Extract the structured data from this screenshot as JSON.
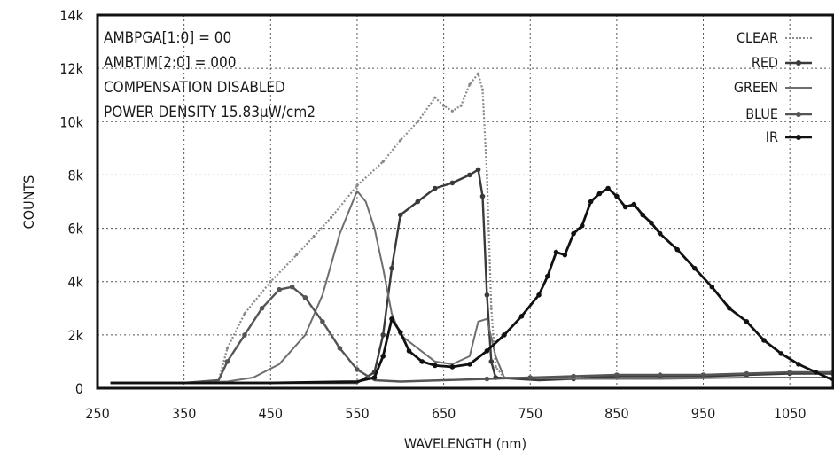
{
  "chart_data": {
    "type": "line",
    "title": "",
    "xlabel": "WAVELENGTH (nm)",
    "ylabel": "COUNTS",
    "xlim": [
      250,
      1100
    ],
    "ylim": [
      0,
      14000
    ],
    "grid": true,
    "x_ticks": [
      "250",
      "350",
      "450",
      "550",
      "650",
      "750",
      "850",
      "950",
      "1050"
    ],
    "y_ticks": [
      "0",
      "2k",
      "4k",
      "6k",
      "8k",
      "10k",
      "12k",
      "14k"
    ],
    "annotations": [
      "AMBPGA[1:0] = 00",
      "AMBTIM[2:0] = 000",
      "COMPENSATION DISABLED",
      "POWER DENSITY 15.83µW/cm2"
    ],
    "legend_position": "top-right",
    "series": [
      {
        "name": "CLEAR",
        "color": "#8a8a8a",
        "style": "dotted",
        "points": [
          [
            265,
            200
          ],
          [
            300,
            200
          ],
          [
            350,
            200
          ],
          [
            380,
            250
          ],
          [
            390,
            300
          ],
          [
            400,
            1500
          ],
          [
            420,
            2800
          ],
          [
            450,
            4000
          ],
          [
            480,
            5000
          ],
          [
            500,
            5700
          ],
          [
            520,
            6400
          ],
          [
            550,
            7600
          ],
          [
            580,
            8500
          ],
          [
            600,
            9300
          ],
          [
            620,
            10000
          ],
          [
            640,
            10900
          ],
          [
            650,
            10600
          ],
          [
            660,
            10400
          ],
          [
            670,
            10600
          ],
          [
            680,
            11400
          ],
          [
            690,
            11800
          ],
          [
            695,
            11200
          ],
          [
            700,
            8000
          ],
          [
            705,
            3000
          ],
          [
            710,
            800
          ],
          [
            720,
            400
          ],
          [
            760,
            350
          ],
          [
            800,
            400
          ],
          [
            850,
            450
          ],
          [
            900,
            450
          ],
          [
            950,
            500
          ],
          [
            1000,
            550
          ],
          [
            1050,
            600
          ],
          [
            1100,
            600
          ]
        ]
      },
      {
        "name": "RED",
        "color": "#3a3a3a",
        "style": "solid-markers",
        "points": [
          [
            265,
            200
          ],
          [
            350,
            200
          ],
          [
            450,
            200
          ],
          [
            550,
            200
          ],
          [
            570,
            600
          ],
          [
            580,
            2000
          ],
          [
            590,
            4500
          ],
          [
            600,
            6500
          ],
          [
            620,
            7000
          ],
          [
            640,
            7500
          ],
          [
            660,
            7700
          ],
          [
            680,
            8000
          ],
          [
            690,
            8200
          ],
          [
            695,
            7200
          ],
          [
            700,
            3500
          ],
          [
            705,
            1000
          ],
          [
            710,
            400
          ],
          [
            760,
            300
          ],
          [
            800,
            350
          ],
          [
            850,
            450
          ],
          [
            900,
            450
          ],
          [
            950,
            450
          ],
          [
            1000,
            500
          ],
          [
            1050,
            550
          ],
          [
            1100,
            550
          ]
        ]
      },
      {
        "name": "GREEN",
        "color": "#6e6e6e",
        "style": "solid-thin",
        "points": [
          [
            265,
            200
          ],
          [
            350,
            200
          ],
          [
            400,
            250
          ],
          [
            430,
            400
          ],
          [
            460,
            900
          ],
          [
            490,
            2000
          ],
          [
            510,
            3500
          ],
          [
            530,
            5800
          ],
          [
            550,
            7400
          ],
          [
            560,
            7000
          ],
          [
            570,
            6000
          ],
          [
            580,
            4500
          ],
          [
            590,
            2800
          ],
          [
            600,
            2000
          ],
          [
            620,
            1500
          ],
          [
            640,
            1000
          ],
          [
            660,
            900
          ],
          [
            680,
            1200
          ],
          [
            690,
            2500
          ],
          [
            700,
            2600
          ],
          [
            710,
            1200
          ],
          [
            720,
            400
          ],
          [
            800,
            350
          ],
          [
            900,
            350
          ],
          [
            1000,
            400
          ],
          [
            1100,
            400
          ]
        ]
      },
      {
        "name": "BLUE",
        "color": "#555555",
        "style": "solid-markers",
        "points": [
          [
            265,
            200
          ],
          [
            350,
            200
          ],
          [
            390,
            300
          ],
          [
            400,
            1000
          ],
          [
            420,
            2000
          ],
          [
            440,
            3000
          ],
          [
            460,
            3700
          ],
          [
            475,
            3800
          ],
          [
            490,
            3400
          ],
          [
            510,
            2500
          ],
          [
            530,
            1500
          ],
          [
            550,
            700
          ],
          [
            570,
            300
          ],
          [
            600,
            250
          ],
          [
            650,
            300
          ],
          [
            700,
            350
          ],
          [
            750,
            400
          ],
          [
            800,
            450
          ],
          [
            850,
            500
          ],
          [
            900,
            500
          ],
          [
            950,
            500
          ],
          [
            1000,
            550
          ],
          [
            1050,
            600
          ],
          [
            1100,
            600
          ]
        ]
      },
      {
        "name": "IR",
        "color": "#111111",
        "style": "solid-markers",
        "points": [
          [
            265,
            200
          ],
          [
            350,
            200
          ],
          [
            450,
            200
          ],
          [
            550,
            250
          ],
          [
            570,
            400
          ],
          [
            580,
            1200
          ],
          [
            590,
            2600
          ],
          [
            600,
            2100
          ],
          [
            610,
            1400
          ],
          [
            625,
            1000
          ],
          [
            640,
            850
          ],
          [
            660,
            800
          ],
          [
            680,
            900
          ],
          [
            700,
            1400
          ],
          [
            720,
            2000
          ],
          [
            740,
            2700
          ],
          [
            760,
            3500
          ],
          [
            770,
            4200
          ],
          [
            780,
            5100
          ],
          [
            790,
            5000
          ],
          [
            800,
            5800
          ],
          [
            810,
            6100
          ],
          [
            820,
            7000
          ],
          [
            830,
            7300
          ],
          [
            840,
            7500
          ],
          [
            850,
            7200
          ],
          [
            860,
            6800
          ],
          [
            870,
            6900
          ],
          [
            880,
            6500
          ],
          [
            890,
            6200
          ],
          [
            900,
            5800
          ],
          [
            920,
            5200
          ],
          [
            940,
            4500
          ],
          [
            960,
            3800
          ],
          [
            980,
            3000
          ],
          [
            1000,
            2500
          ],
          [
            1020,
            1800
          ],
          [
            1040,
            1300
          ],
          [
            1060,
            900
          ],
          [
            1080,
            600
          ],
          [
            1100,
            300
          ]
        ]
      }
    ]
  }
}
